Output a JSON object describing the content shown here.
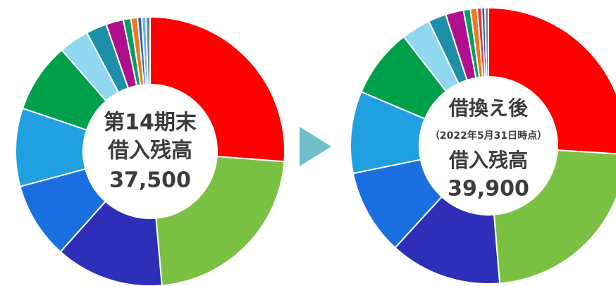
{
  "chart_data": [
    {
      "type": "donut",
      "center_text": [
        "第14期末",
        "借入残高",
        "37,500"
      ],
      "values": [
        26.2,
        22.4,
        13,
        9.2,
        9.4,
        8.4,
        3.6,
        2.5,
        2.1,
        0.9,
        0.8,
        0.5,
        0.5,
        0.5
      ],
      "colors": [
        "#ff0000",
        "#7ac143",
        "#2e2eb8",
        "#1a6fe0",
        "#20a0e0",
        "#00a04a",
        "#90d8f0",
        "#1e8fa8",
        "#b0108c",
        "#00a060",
        "#f07820",
        "#2e5fb0",
        "#60b8e8",
        "#808080"
      ]
    },
    {
      "type": "donut",
      "center_text": [
        "借換え後",
        "（2022年5月31日時点）",
        "借入残高",
        "39,900"
      ],
      "values": [
        26,
        22.7,
        13.1,
        10,
        9.6,
        8.1,
        3.4,
        2.1,
        2.1,
        0.8,
        0.8,
        0.5,
        0.4,
        0.4
      ],
      "colors": [
        "#ff0000",
        "#7ac143",
        "#2e2eb8",
        "#1a6fe0",
        "#20a0e0",
        "#00a04a",
        "#90d8f0",
        "#1e8fa8",
        "#b0108c",
        "#00a060",
        "#f07820",
        "#e03030",
        "#2e5fb0",
        "#808080"
      ]
    }
  ]
}
